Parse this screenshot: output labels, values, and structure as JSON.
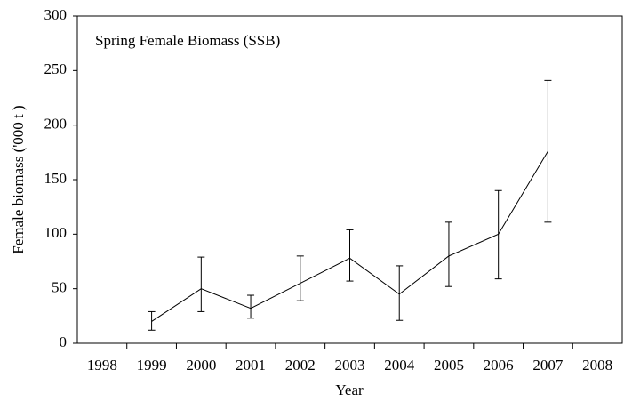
{
  "chart_data": {
    "type": "line",
    "annotation": "Spring Female Biomass (SSB)",
    "x_label": "Year",
    "y_label": "Female biomass ('000 t )",
    "categories": [
      "1998",
      "1999",
      "2000",
      "2001",
      "2002",
      "2003",
      "2004",
      "2005",
      "2006",
      "2007",
      "2008"
    ],
    "series": [
      {
        "color": "#000000",
        "values": [
          null,
          20,
          50,
          32,
          55,
          78,
          45,
          80,
          100,
          176,
          null
        ],
        "error_low": [
          null,
          12,
          29,
          23,
          39,
          57,
          21,
          52,
          59,
          111,
          null
        ],
        "error_high": [
          null,
          29,
          79,
          44,
          80,
          104,
          71,
          111,
          140,
          241,
          null
        ]
      }
    ],
    "ylim": [
      0,
      300
    ],
    "yticks": [
      0,
      50,
      100,
      150,
      200,
      250,
      300
    ],
    "grid": false
  }
}
